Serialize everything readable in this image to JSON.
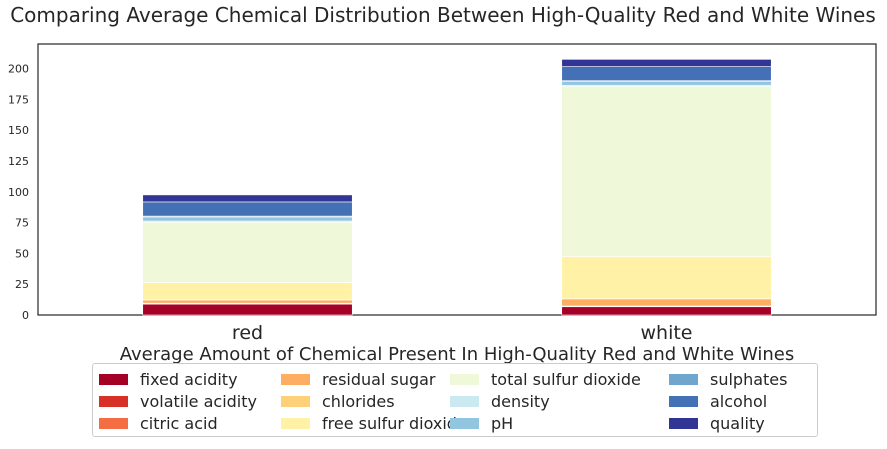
{
  "chart_data": {
    "type": "bar",
    "stacked": true,
    "title": "Comparing Average Chemical Distribution Between High-Quality Red and White Wines",
    "xlabel": "Average Amount of Chemical Present In High-Quality Red and White Wines",
    "ylabel": "",
    "categories": [
      "red",
      "white"
    ],
    "ylim": [
      0,
      220
    ],
    "yticks": [
      0,
      25,
      50,
      75,
      100,
      125,
      150,
      175,
      200
    ],
    "grid": false,
    "legend_position": "bottom",
    "legend_columns": 4,
    "series": [
      {
        "name": "fixed acidity",
        "color": "#a50026",
        "values": [
          8.8,
          6.7
        ]
      },
      {
        "name": "volatile acidity",
        "color": "#d73027",
        "values": [
          0.4,
          0.3
        ]
      },
      {
        "name": "citric acid",
        "color": "#f46d43",
        "values": [
          0.4,
          0.3
        ]
      },
      {
        "name": "residual sugar",
        "color": "#fdae61",
        "values": [
          2.6,
          5.8
        ]
      },
      {
        "name": "chlorides",
        "color": "#fdd17a",
        "values": [
          0.1,
          0.04
        ]
      },
      {
        "name": "free sulfur dioxide",
        "color": "#fff2a6",
        "values": [
          14.0,
          34.4
        ]
      },
      {
        "name": "total sulfur dioxide",
        "color": "#eff8d9",
        "values": [
          49.0,
          138.0
        ]
      },
      {
        "name": "density",
        "color": "#cbe9f0",
        "values": [
          1.0,
          1.0
        ]
      },
      {
        "name": "pH",
        "color": "#91c5e0",
        "values": [
          3.3,
          3.2
        ]
      },
      {
        "name": "sulphates",
        "color": "#6ea6cd",
        "values": [
          0.7,
          0.5
        ]
      },
      {
        "name": "alcohol",
        "color": "#4470b5",
        "values": [
          11.5,
          11.4
        ]
      },
      {
        "name": "quality",
        "color": "#313695",
        "values": [
          5.7,
          5.9
        ]
      }
    ]
  }
}
